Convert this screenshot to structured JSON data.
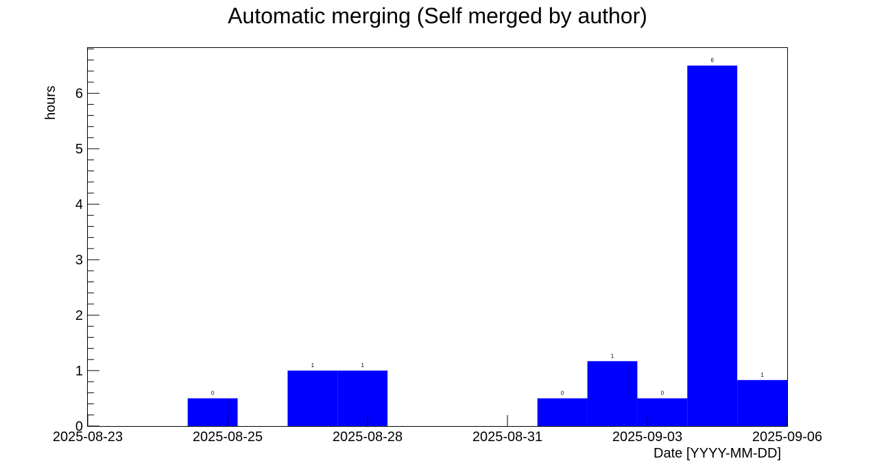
{
  "chart_data": {
    "type": "bar",
    "title": "Automatic merging (Self merged by author)",
    "xlabel": "Date [YYYY-MM-DD]",
    "ylabel": "hours",
    "x_tick_labels": [
      "2025-08-23",
      "2025-08-25",
      "2025-08-28",
      "2025-08-31",
      "2025-09-03",
      "2025-09-06"
    ],
    "y_tick_labels": [
      "0",
      "1",
      "2",
      "3",
      "4",
      "5",
      "6"
    ],
    "ylim": [
      0,
      6.83
    ],
    "xlim": [
      0,
      14
    ],
    "x_tick_positions": [
      0,
      2.8,
      5.6,
      8.4,
      11.2,
      14
    ],
    "bars": [
      {
        "bin": 0,
        "value": 0,
        "label": ""
      },
      {
        "bin": 1,
        "value": 0,
        "label": ""
      },
      {
        "bin": 2,
        "value": 0.5,
        "label": "0"
      },
      {
        "bin": 3,
        "value": 0,
        "label": ""
      },
      {
        "bin": 4,
        "value": 1.0,
        "label": "1"
      },
      {
        "bin": 5,
        "value": 1.0,
        "label": "1"
      },
      {
        "bin": 6,
        "value": 0,
        "label": ""
      },
      {
        "bin": 7,
        "value": 0,
        "label": ""
      },
      {
        "bin": 8,
        "value": 0,
        "label": ""
      },
      {
        "bin": 9,
        "value": 0.5,
        "label": "0"
      },
      {
        "bin": 10,
        "value": 1.17,
        "label": "1"
      },
      {
        "bin": 11,
        "value": 0.5,
        "label": "0"
      },
      {
        "bin": 12,
        "value": 6.5,
        "label": "6"
      },
      {
        "bin": 13,
        "value": 0.83,
        "label": "1"
      }
    ],
    "bar_color": "#0000ff",
    "grid": false,
    "legend": "none"
  }
}
